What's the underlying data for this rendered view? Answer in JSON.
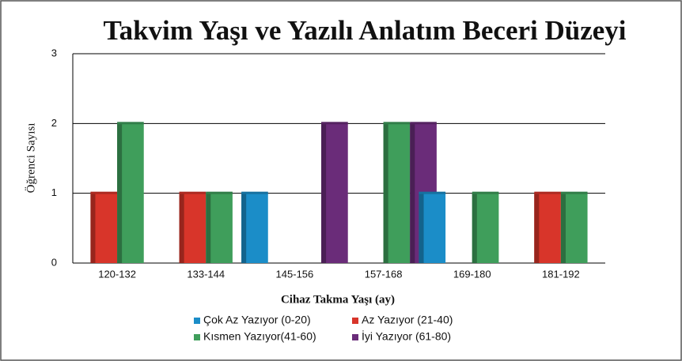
{
  "chart_data": {
    "type": "bar",
    "title": "Takvim Yaşı ve Yazılı Anlatım Beceri Düzeyi",
    "x_label": "Cihaz Takma Yaşı (ay)",
    "y_label": "Öğrenci Sayısı",
    "categories": [
      "120-132",
      "133-144",
      "145-156",
      "157-168",
      "169-180",
      "181-192"
    ],
    "series": [
      {
        "name": "Çok Az Yazıyor (0-20)",
        "color": "#1b8dc8",
        "values": [
          0,
          0,
          1,
          0,
          1,
          0
        ]
      },
      {
        "name": "Az Yazıyor (21-40)",
        "color": "#d8352a",
        "values": [
          1,
          1,
          0,
          0,
          0,
          1
        ]
      },
      {
        "name": "Kısmen Yazıyor(41-60)",
        "color": "#3f9e5b",
        "values": [
          2,
          1,
          0,
          2,
          1,
          1
        ]
      },
      {
        "name": "İyi Yazıyor (61-80)",
        "color": "#6a2c79",
        "values": [
          0,
          0,
          2,
          2,
          0,
          0
        ]
      }
    ],
    "ylim": [
      0,
      3
    ],
    "yticks": [
      0,
      1,
      2,
      3
    ],
    "grid": true
  }
}
